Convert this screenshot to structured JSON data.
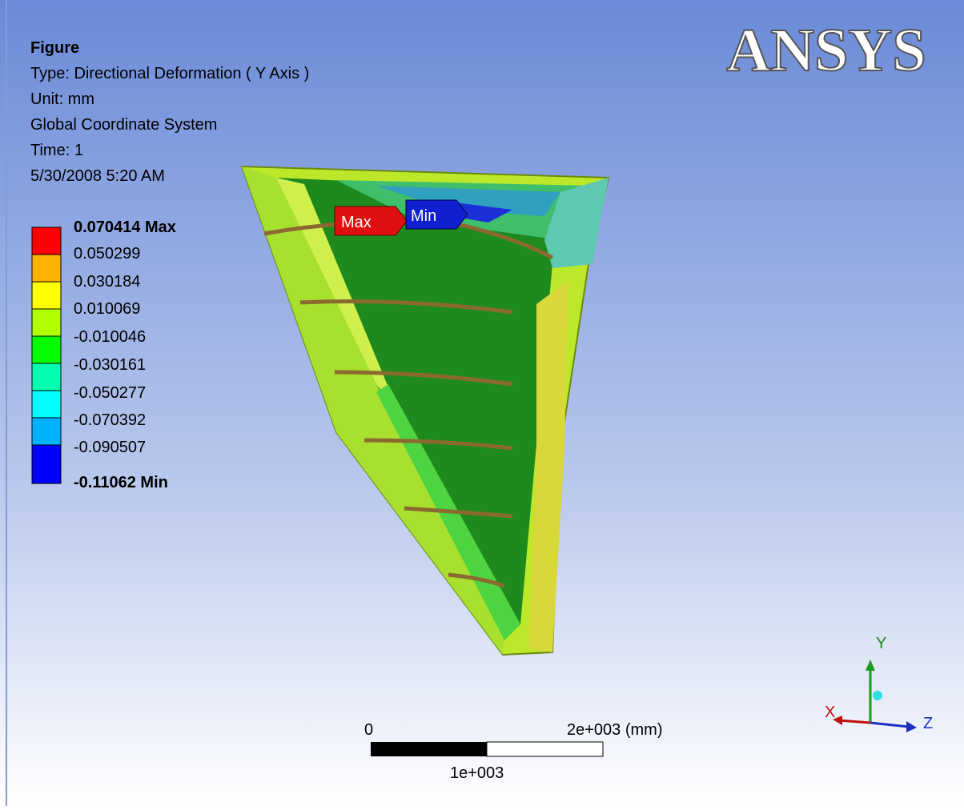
{
  "header": {
    "title": "Figure",
    "lines": [
      "Type: Directional Deformation ( Y Axis )",
      "Unit: mm",
      "Global Coordinate System",
      "Time: 1",
      "5/30/2008 5:20 AM"
    ]
  },
  "logo": "ANSYS",
  "legend": {
    "labels": [
      "0.070414 Max",
      "0.050299",
      "0.030184",
      "0.010069",
      "-0.010046",
      "-0.030161",
      "-0.050277",
      "-0.070392",
      "-0.090507",
      "-0.11062 Min"
    ]
  },
  "probes": {
    "max": "Max",
    "min": "Min"
  },
  "scale_bar": {
    "start": "0",
    "end": "2e+003 (mm)",
    "middle": "1e+003"
  },
  "triad": {
    "x": "X",
    "y": "Y",
    "z": "Z"
  }
}
